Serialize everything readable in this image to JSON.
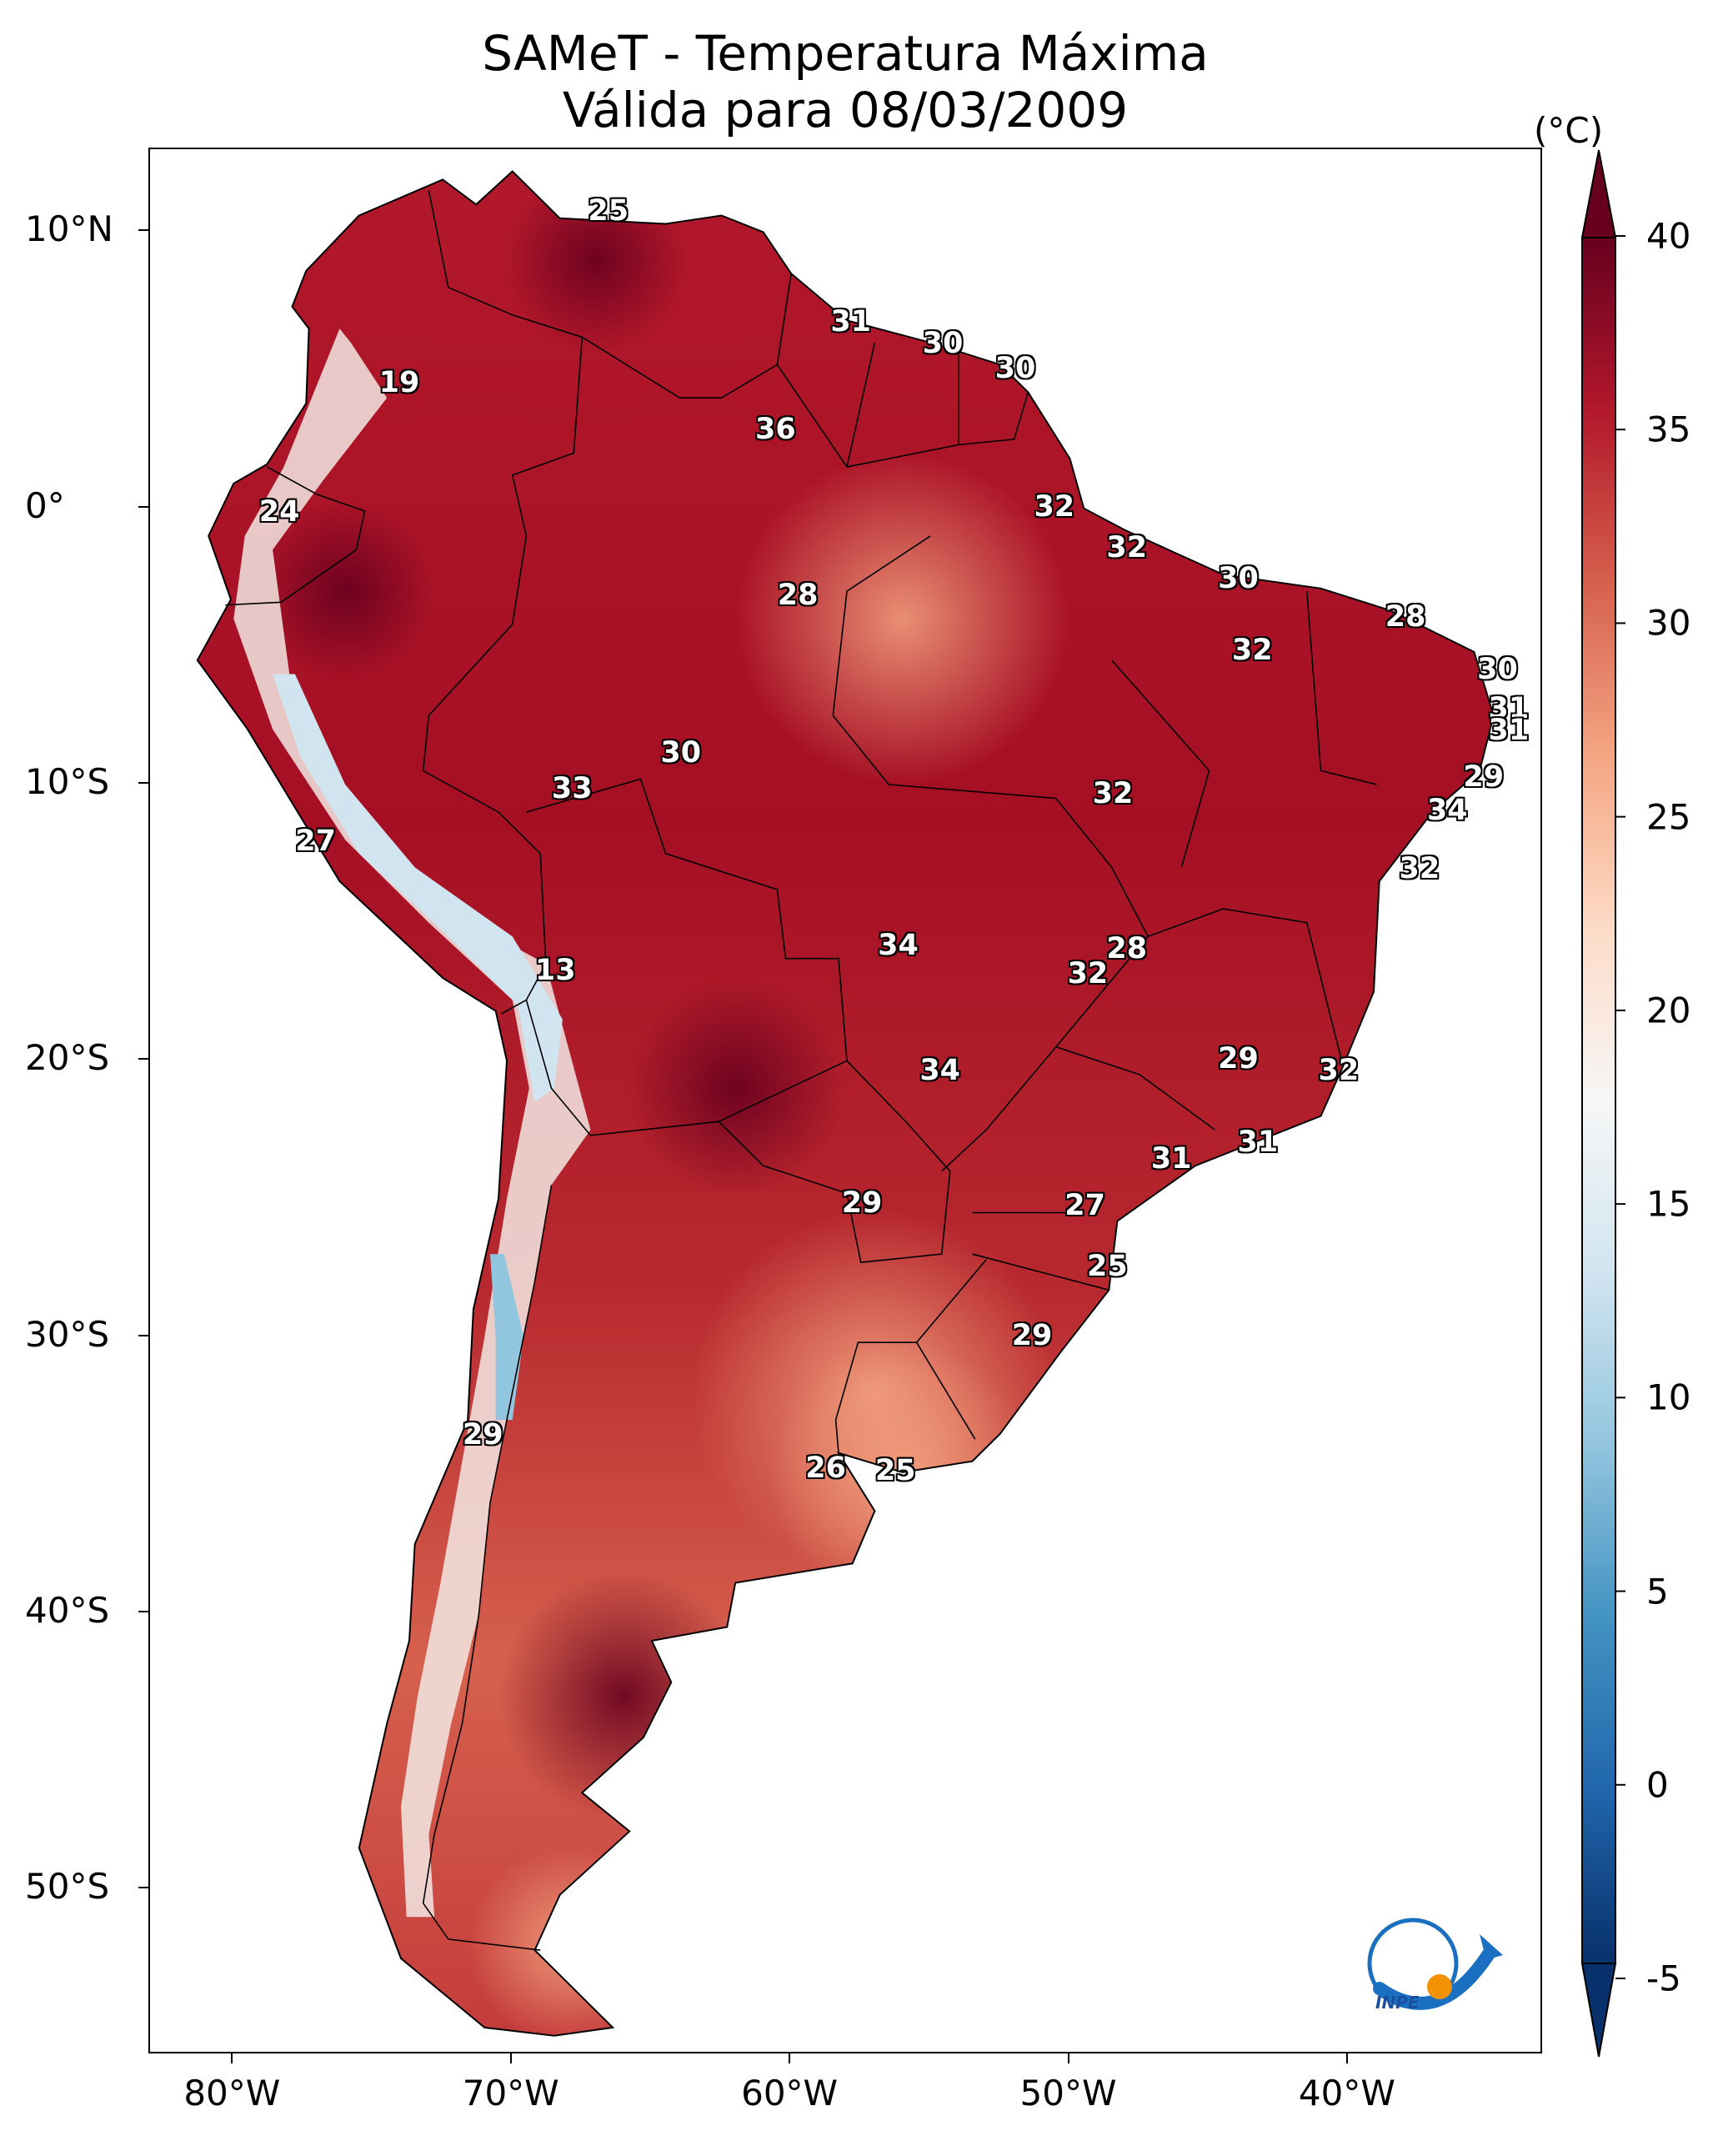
{
  "title": {
    "line1": "SAMeT - Temperatura Máxima",
    "line2": "Válida para 08/03/2009"
  },
  "latitude_labels": [
    "10°N",
    "0°",
    "10°S",
    "20°S",
    "30°S",
    "40°S",
    "50°S"
  ],
  "latitude_values": [
    10,
    0,
    -10,
    -20,
    -30,
    -40,
    -50
  ],
  "longitude_labels": [
    "80°W",
    "70°W",
    "60°W",
    "50°W",
    "40°W"
  ],
  "longitude_values": [
    -80,
    -70,
    -60,
    -50,
    -40
  ],
  "map_extent": {
    "lon_min": -83,
    "lon_max": -33,
    "lat_min": -56,
    "lat_max": 13
  },
  "colorbar": {
    "unit": "(°C)",
    "tick_labels": [
      "40",
      "35",
      "30",
      "25",
      "20",
      "15",
      "10",
      "5",
      "0",
      "-5"
    ],
    "tick_values": [
      40,
      35,
      30,
      25,
      20,
      15,
      10,
      5,
      0,
      -5
    ],
    "min": -5,
    "max": 40,
    "colors": [
      "#08306b",
      "#2166ac",
      "#4393c3",
      "#92c5de",
      "#d1e5f0",
      "#f7f7f7",
      "#fddbc7",
      "#f4a582",
      "#d6604d",
      "#b2182b",
      "#67001f"
    ]
  },
  "contour_labels": [
    {
      "text": "25",
      "lon": -66.5,
      "lat": 10.7
    },
    {
      "text": "19",
      "lon": -74.0,
      "lat": 4.5
    },
    {
      "text": "31",
      "lon": -57.8,
      "lat": 6.7
    },
    {
      "text": "30",
      "lon": -54.5,
      "lat": 5.9
    },
    {
      "text": "30",
      "lon": -51.9,
      "lat": 5.0
    },
    {
      "text": "36",
      "lon": -60.5,
      "lat": 2.8
    },
    {
      "text": "24",
      "lon": -78.3,
      "lat": -0.2
    },
    {
      "text": "32",
      "lon": -50.5,
      "lat": 0.0
    },
    {
      "text": "32",
      "lon": -47.9,
      "lat": -1.5
    },
    {
      "text": "30",
      "lon": -43.9,
      "lat": -2.6
    },
    {
      "text": "28",
      "lon": -59.7,
      "lat": -3.2
    },
    {
      "text": "28",
      "lon": -37.9,
      "lat": -4.0
    },
    {
      "text": "32",
      "lon": -43.4,
      "lat": -5.2
    },
    {
      "text": "30",
      "lon": -34.6,
      "lat": -5.9
    },
    {
      "text": "31",
      "lon": -34.2,
      "lat": -7.3
    },
    {
      "text": "31",
      "lon": -34.2,
      "lat": -8.1
    },
    {
      "text": "30",
      "lon": -63.9,
      "lat": -8.9
    },
    {
      "text": "29",
      "lon": -35.1,
      "lat": -9.8
    },
    {
      "text": "33",
      "lon": -67.8,
      "lat": -10.2
    },
    {
      "text": "32",
      "lon": -48.4,
      "lat": -10.4
    },
    {
      "text": "34",
      "lon": -36.4,
      "lat": -11.0
    },
    {
      "text": "27",
      "lon": -77.0,
      "lat": -12.1
    },
    {
      "text": "32",
      "lon": -37.4,
      "lat": -13.1
    },
    {
      "text": "34",
      "lon": -56.1,
      "lat": -15.9
    },
    {
      "text": "28",
      "lon": -47.9,
      "lat": -16.0
    },
    {
      "text": "13",
      "lon": -68.4,
      "lat": -16.8
    },
    {
      "text": "32",
      "lon": -49.3,
      "lat": -16.9
    },
    {
      "text": "29",
      "lon": -43.9,
      "lat": -20.0
    },
    {
      "text": "32",
      "lon": -40.3,
      "lat": -20.4
    },
    {
      "text": "34",
      "lon": -54.6,
      "lat": -20.4
    },
    {
      "text": "31",
      "lon": -43.2,
      "lat": -23.0
    },
    {
      "text": "31",
      "lon": -46.3,
      "lat": -23.6
    },
    {
      "text": "29",
      "lon": -57.4,
      "lat": -25.2
    },
    {
      "text": "27",
      "lon": -49.4,
      "lat": -25.3
    },
    {
      "text": "25",
      "lon": -48.6,
      "lat": -27.5
    },
    {
      "text": "29",
      "lon": -51.3,
      "lat": -30.0
    },
    {
      "text": "29",
      "lon": -71.0,
      "lat": -33.6
    },
    {
      "text": "26",
      "lon": -58.7,
      "lat": -34.8
    },
    {
      "text": "25",
      "lon": -56.2,
      "lat": -34.9
    }
  ],
  "logo": {
    "text": "INPE"
  }
}
